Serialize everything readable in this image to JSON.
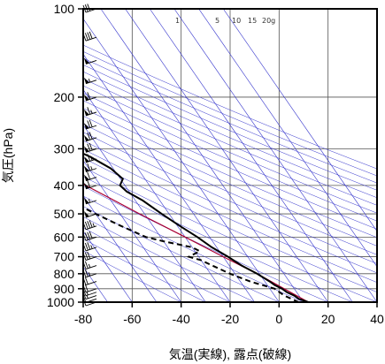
{
  "chart_data": {
    "type": "skew-t",
    "xlabel": "気温(実線), 露点(破線)",
    "ylabel": "気圧(hPa)",
    "xlim": [
      -80,
      40
    ],
    "ylim": [
      1000,
      100
    ],
    "y_scale": "log",
    "x_ticks": [
      -80,
      -60,
      -40,
      -20,
      0,
      20,
      40
    ],
    "y_ticks": [
      100,
      200,
      300,
      400,
      500,
      600,
      700,
      800,
      900,
      1000
    ],
    "mixing_ratio_labels": [
      {
        "label": "1",
        "value": 1
      },
      {
        "label": "5",
        "value": 5
      },
      {
        "label": "10",
        "value": 10
      },
      {
        "label": "15",
        "value": 15
      },
      {
        "label": "20g",
        "value": 20
      }
    ],
    "colors": {
      "isotherm": "#3333cc",
      "dry_adiabat": "#3333cc",
      "parcel": "#aa0033",
      "profile": "#000000"
    },
    "temperature": [
      {
        "p": 1000,
        "t": 12
      },
      {
        "p": 975,
        "t": 9
      },
      {
        "p": 950,
        "t": 8
      },
      {
        "p": 925,
        "t": 6
      },
      {
        "p": 900,
        "t": 5
      },
      {
        "p": 875,
        "t": 3
      },
      {
        "p": 850,
        "t": 2
      },
      {
        "p": 800,
        "t": -1
      },
      {
        "p": 750,
        "t": -5
      },
      {
        "p": 700,
        "t": -8
      },
      {
        "p": 650,
        "t": -12
      },
      {
        "p": 600,
        "t": -15
      },
      {
        "p": 550,
        "t": -19
      },
      {
        "p": 500,
        "t": -23
      },
      {
        "p": 450,
        "t": -27
      },
      {
        "p": 420,
        "t": -31
      },
      {
        "p": 400,
        "t": -32
      },
      {
        "p": 380,
        "t": -29
      },
      {
        "p": 350,
        "t": -31
      },
      {
        "p": 320,
        "t": -36
      },
      {
        "p": 300,
        "t": -41
      },
      {
        "p": 250,
        "t": -51
      },
      {
        "p": 200,
        "t": -60
      },
      {
        "p": 150,
        "t": -67
      },
      {
        "p": 120,
        "t": -70
      },
      {
        "p": 110,
        "t": -70
      },
      {
        "p": 100,
        "t": -69
      }
    ],
    "dewpoint": [
      {
        "p": 1000,
        "t": 8
      },
      {
        "p": 975,
        "t": 6
      },
      {
        "p": 950,
        "t": 4
      },
      {
        "p": 925,
        "t": 3
      },
      {
        "p": 900,
        "t": 2
      },
      {
        "p": 875,
        "t": -2
      },
      {
        "p": 850,
        "t": -6
      },
      {
        "p": 800,
        "t": -12
      },
      {
        "p": 750,
        "t": -17
      },
      {
        "p": 720,
        "t": -20
      },
      {
        "p": 700,
        "t": -24
      },
      {
        "p": 670,
        "t": -18
      },
      {
        "p": 650,
        "t": -20
      },
      {
        "p": 620,
        "t": -30
      },
      {
        "p": 600,
        "t": -36
      },
      {
        "p": 550,
        "t": -43
      },
      {
        "p": 500,
        "t": -50
      },
      {
        "p": 450,
        "t": -57
      },
      {
        "p": 420,
        "t": -56
      },
      {
        "p": 400,
        "t": -51
      },
      {
        "p": 380,
        "t": -46
      },
      {
        "p": 360,
        "t": -50
      },
      {
        "p": 350,
        "t": -60
      },
      {
        "p": 340,
        "t": -58
      },
      {
        "p": 330,
        "t": -50
      },
      {
        "p": 320,
        "t": -46
      },
      {
        "p": 310,
        "t": -52
      },
      {
        "p": 300,
        "t": -58
      },
      {
        "p": 290,
        "t": -68
      },
      {
        "p": 280,
        "t": -78
      }
    ],
    "parcel": [
      {
        "p": 1000,
        "t": 12
      },
      {
        "p": 800,
        "t": -1
      },
      {
        "p": 700,
        "t": -10
      },
      {
        "p": 600,
        "t": -20
      },
      {
        "p": 500,
        "t": -32
      },
      {
        "p": 400,
        "t": -46
      },
      {
        "p": 300,
        "t": -64
      },
      {
        "p": 250,
        "t": -75
      },
      {
        "p": 200,
        "t": -88
      }
    ],
    "wind_barbs": [
      {
        "p": 1000,
        "spd": 10
      },
      {
        "p": 975,
        "spd": 10
      },
      {
        "p": 950,
        "spd": 15
      },
      {
        "p": 925,
        "spd": 15
      },
      {
        "p": 900,
        "spd": 20
      },
      {
        "p": 850,
        "spd": 20
      },
      {
        "p": 800,
        "spd": 25
      },
      {
        "p": 750,
        "spd": 25
      },
      {
        "p": 700,
        "spd": 30
      },
      {
        "p": 650,
        "spd": 35
      },
      {
        "p": 600,
        "spd": 40
      },
      {
        "p": 550,
        "spd": 45
      },
      {
        "p": 500,
        "spd": 50
      },
      {
        "p": 450,
        "spd": 55
      },
      {
        "p": 400,
        "spd": 60
      },
      {
        "p": 375,
        "spd": 60
      },
      {
        "p": 350,
        "spd": 65
      },
      {
        "p": 325,
        "spd": 65
      },
      {
        "p": 300,
        "spd": 70
      },
      {
        "p": 275,
        "spd": 70
      },
      {
        "p": 250,
        "spd": 70
      },
      {
        "p": 225,
        "spd": 65
      },
      {
        "p": 200,
        "spd": 60
      },
      {
        "p": 175,
        "spd": 55
      },
      {
        "p": 150,
        "spd": 50
      },
      {
        "p": 125,
        "spd": 40
      },
      {
        "p": 100,
        "spd": 30
      }
    ]
  }
}
